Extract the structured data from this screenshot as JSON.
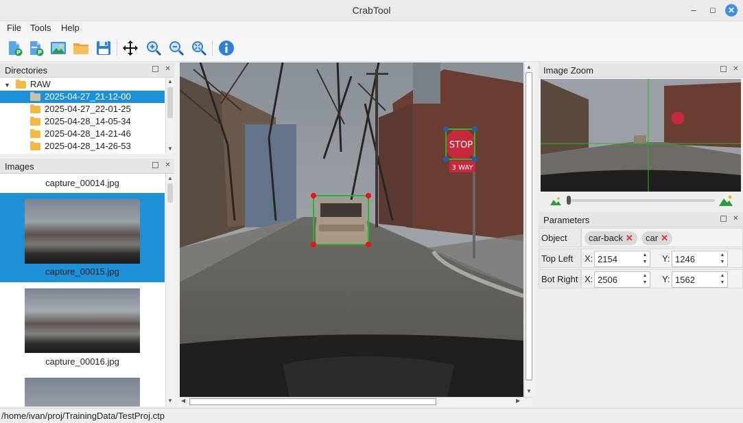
{
  "window": {
    "title": "CrabTool"
  },
  "menu": [
    "File",
    "Tools",
    "Help"
  ],
  "toolbar": {
    "icons": [
      "new-project-icon",
      "new-project-2-icon",
      "image-icon",
      "open-folder-icon",
      "save-icon",
      "move-icon",
      "zoom-in-icon",
      "zoom-out-icon",
      "zoom-fit-icon",
      "info-icon"
    ]
  },
  "directories": {
    "title": "Directories",
    "root": "RAW",
    "items": [
      "2025-04-27_21-12-00",
      "2025-04-27_22-01-25",
      "2025-04-28_14-05-34",
      "2025-04-28_14-21-46",
      "2025-04-28_14-26-53"
    ],
    "selected_index": 0
  },
  "images": {
    "title": "Images",
    "items": [
      "capture_00014.jpg",
      "capture_00015.jpg",
      "capture_00016.jpg"
    ],
    "selected_index": 1
  },
  "canvas": {
    "sign_text": "STOP",
    "sign2_text": "3 WAY"
  },
  "image_zoom": {
    "title": "Image Zoom"
  },
  "parameters": {
    "title": "Parameters",
    "object_label": "Object",
    "tags": [
      "car-back",
      "car"
    ],
    "rows": [
      {
        "label": "Top Left",
        "x_label": "X:",
        "x": "2154",
        "y_label": "Y:",
        "y": "1246"
      },
      {
        "label": "Bot Right",
        "x_label": "X:",
        "x": "2506",
        "y_label": "Y:",
        "y": "1562"
      }
    ]
  },
  "status": {
    "path": "/home/ivan/proj/TrainingData/TestProj.ctp"
  },
  "colors": {
    "selection": "#1e90d8",
    "bbox_car": "#22bb22",
    "bbox_corner": "#ee1111",
    "sign": "#c8283c"
  }
}
